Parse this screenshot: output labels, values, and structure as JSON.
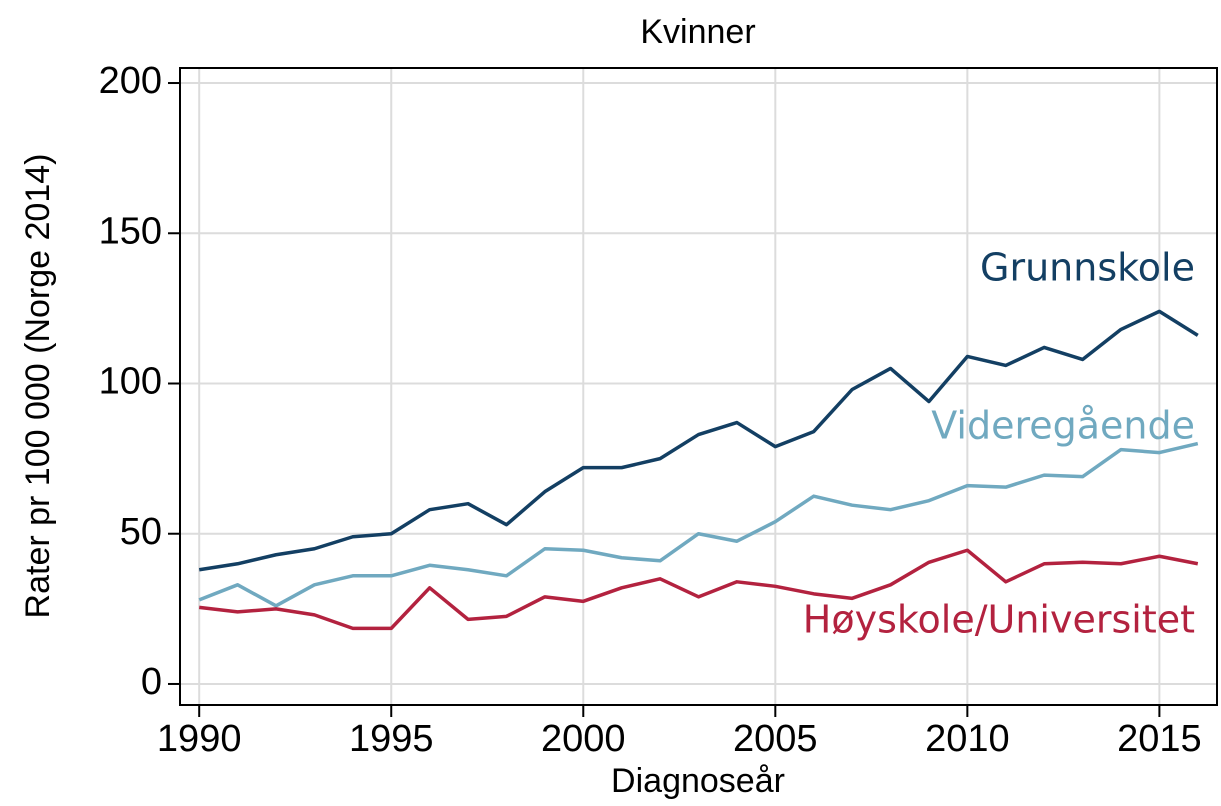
{
  "chart_data": {
    "type": "line",
    "title": "Kvinner",
    "x_label": "Diagnoseår",
    "y_label": "Rater pr 100 000 (Norge 2014)",
    "x": [
      1990,
      1991,
      1992,
      1993,
      1994,
      1995,
      1996,
      1997,
      1998,
      1999,
      2000,
      2001,
      2002,
      2003,
      2004,
      2005,
      2006,
      2007,
      2008,
      2009,
      2010,
      2011,
      2012,
      2013,
      2014,
      2015,
      2016
    ],
    "series": [
      {
        "name": "Grunnskole",
        "color": "#133f63",
        "values": [
          38,
          40,
          43,
          45,
          49,
          50,
          58,
          60,
          53,
          64,
          72,
          72,
          75,
          83,
          87,
          79,
          84,
          98,
          105,
          94,
          109,
          106,
          112,
          108,
          118,
          124,
          116
        ]
      },
      {
        "name": "Videregående",
        "color": "#70a9c0",
        "values": [
          28,
          33,
          26,
          33,
          36,
          36,
          39.5,
          38,
          36,
          45,
          44.5,
          42,
          41,
          50,
          47.5,
          54,
          62.5,
          59.5,
          58,
          61,
          66,
          65.5,
          69.5,
          69,
          78,
          77,
          80
        ]
      },
      {
        "name": "Høyskole/Universitet",
        "color": "#b3223f",
        "values": [
          25.5,
          24,
          25,
          23,
          18.5,
          18.5,
          32,
          21.5,
          22.5,
          29,
          27.5,
          32,
          35,
          29,
          34,
          32.5,
          30,
          28.5,
          33,
          40.5,
          44.5,
          34,
          40,
          40.5,
          40,
          42.5,
          40
        ]
      }
    ],
    "xlim": [
      1989.5,
      2016.5
    ],
    "xticks": [
      1990,
      1995,
      2000,
      2005,
      2010,
      2015
    ],
    "ylim": [
      -7,
      205
    ],
    "yticks": [
      0,
      50,
      100,
      150,
      200
    ],
    "grid": true
  }
}
